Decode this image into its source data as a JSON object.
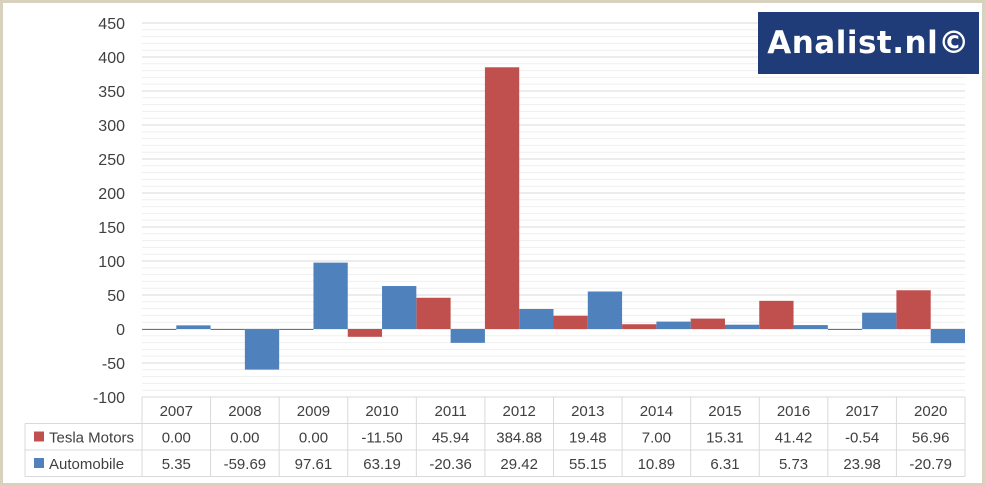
{
  "watermark": "Analist.nl©",
  "colors": {
    "tesla": "#c0504d",
    "automobile": "#4f81bd"
  },
  "chart_data": {
    "type": "bar",
    "categories": [
      "2007",
      "2008",
      "2009",
      "2010",
      "2011",
      "2012",
      "2013",
      "2014",
      "2015",
      "2016",
      "2017",
      "2020"
    ],
    "series": [
      {
        "name": "Tesla Motors",
        "values": [
          0.0,
          0.0,
          0.0,
          -11.5,
          45.94,
          384.88,
          19.48,
          7.0,
          15.31,
          41.42,
          -0.54,
          56.96
        ],
        "labels": [
          "0.00",
          "0.00",
          "0.00",
          "-11.50",
          "45.94",
          "384.88",
          "19.48",
          "7.00",
          "15.31",
          "41.42",
          "-0.54",
          "56.96"
        ]
      },
      {
        "name": "Automobile",
        "values": [
          5.35,
          -59.69,
          97.61,
          63.19,
          -20.36,
          29.42,
          55.15,
          10.89,
          6.31,
          5.73,
          23.98,
          -20.79
        ],
        "labels": [
          "5.35",
          "-59.69",
          "97.61",
          "63.19",
          "-20.36",
          "29.42",
          "55.15",
          "10.89",
          "6.31",
          "5.73",
          "23.98",
          "-20.79"
        ]
      }
    ],
    "ylim": [
      -100,
      450
    ],
    "yticks": [
      "450",
      "400",
      "350",
      "300",
      "250",
      "200",
      "150",
      "100",
      "50",
      "0",
      "-50",
      "-100"
    ],
    "grid": true,
    "legend": "data-table"
  }
}
